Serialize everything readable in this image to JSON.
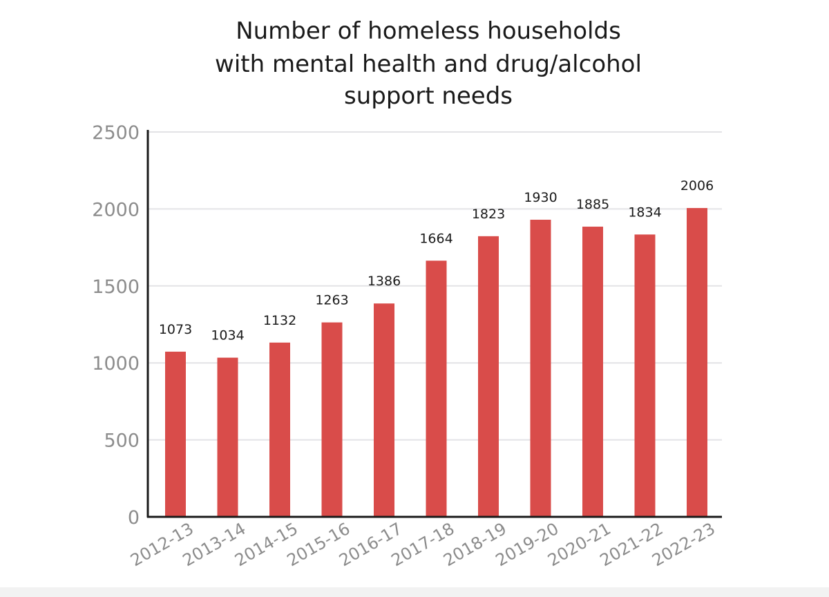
{
  "chart_data": {
    "type": "bar",
    "title_lines": [
      "Number of homeless households",
      "with mental health and drug/alcohol",
      "support needs"
    ],
    "xlabel": "",
    "ylabel": "",
    "categories": [
      "2012-13",
      "2013-14",
      "2014-15",
      "2015-16",
      "2016-17",
      "2017-18",
      "2018-19",
      "2019-20",
      "2020-21",
      "2021-22",
      "2022-23"
    ],
    "values": [
      1073,
      1034,
      1132,
      1263,
      1386,
      1664,
      1823,
      1930,
      1885,
      1834,
      2006
    ],
    "value_labels": [
      "1073",
      "1034",
      "1132",
      "1263",
      "1386",
      "1664",
      "1823",
      "1930",
      "1885",
      "1834",
      "2006"
    ],
    "ylim": [
      0,
      2500
    ],
    "yticks": [
      0,
      500,
      1000,
      1500,
      2000,
      2500
    ],
    "ytick_labels": [
      "0",
      "500",
      "1000",
      "1500",
      "2000",
      "2500"
    ],
    "grid": true,
    "legend": "none",
    "colors": {
      "bar": "#d94c4a",
      "grid": "#e3e3e6",
      "axis": "#1a1a1a",
      "tick_text": "#8c8c8c",
      "label_text": "#1a1a1a"
    }
  }
}
